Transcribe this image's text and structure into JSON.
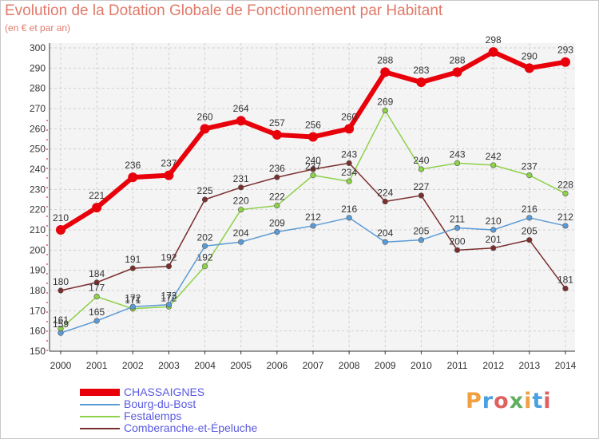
{
  "title": "Evolution de la Dotation Globale de Fonctionnement par Habitant",
  "subtitle": "(en € et par an)",
  "logo": {
    "letters": [
      "P",
      "r",
      "o",
      "x",
      "i",
      "t",
      "i"
    ],
    "colors": [
      "#f0a040",
      "#4aa0e0",
      "#e06060",
      "#60b060",
      "#f0a040",
      "#4aa0e0",
      "#e06060"
    ]
  },
  "chart_data": {
    "type": "line",
    "x": [
      "2000",
      "2001",
      "2002",
      "2003",
      "2004",
      "2005",
      "2006",
      "2007",
      "2008",
      "2009",
      "2010",
      "2011",
      "2012",
      "2013",
      "2014"
    ],
    "ylim": [
      150,
      300
    ],
    "yticks": [
      "150",
      "160",
      "170",
      "180",
      "190",
      "200",
      "210",
      "220",
      "230",
      "240",
      "250",
      "260",
      "270",
      "280",
      "290",
      "300"
    ],
    "grid": true,
    "legend_position": "bottom-left",
    "series": [
      {
        "name": "CHASSAIGNES",
        "color": "#e8000a",
        "values": [
          210,
          221,
          236,
          237,
          260,
          264,
          257,
          256,
          260,
          288,
          283,
          288,
          298,
          290,
          293
        ]
      },
      {
        "name": "Bourg-du-Bost",
        "color": "#5b9bd5",
        "values": [
          159,
          165,
          172,
          173,
          202,
          204,
          209,
          212,
          216,
          204,
          205,
          211,
          210,
          216,
          212
        ]
      },
      {
        "name": "Festalemps",
        "color": "#8ed14a",
        "values": [
          161,
          177,
          171,
          172,
          192,
          220,
          222,
          237,
          234,
          269,
          240,
          243,
          242,
          237,
          228
        ]
      },
      {
        "name": "Comberanche-et-Épeluche",
        "color": "#7a2e2e",
        "values": [
          180,
          184,
          191,
          192,
          225,
          231,
          236,
          240,
          243,
          224,
          227,
          200,
          201,
          205,
          181
        ]
      }
    ]
  }
}
